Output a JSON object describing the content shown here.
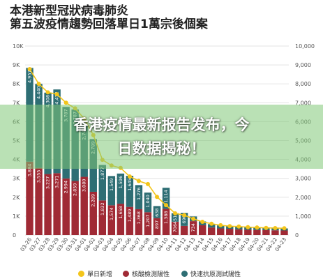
{
  "title_line1": "本港新型冠狀病毒肺炎",
  "title_line2": "第五波疫情趨勢回落單日1萬宗後個案",
  "overlay": {
    "line1": "香港疫情最新报告发布，今",
    "line2": "日数据揭秘！"
  },
  "colors": {
    "daily_total": "#f3c51b",
    "pcr": "#a02a35",
    "rat": "#2e6e74"
  },
  "chart_data": {
    "type": "bar",
    "categories": [
      "03-26",
      "03-27",
      "03-28",
      "03-29",
      "03-30",
      "03-31",
      "04-01",
      "04-02",
      "04-03",
      "04-04",
      "04-05",
      "04-06",
      "04-07",
      "04-08",
      "04-09",
      "04-10",
      "04-11",
      "04-12",
      "04-13",
      "04-14",
      "04-15",
      "04-16",
      "04-17",
      "04-18",
      "04-19",
      "04-20",
      "04-21",
      "04-22",
      "04-23"
    ],
    "tick_labels": [
      "03-26",
      "03-27",
      "03-28",
      "03-29",
      "03-30",
      "03-31",
      "04-01",
      "04-02",
      "04-03",
      "04-04",
      "04-05",
      "04-06",
      "04-07",
      "04-08",
      "04-09",
      "04-10",
      "04-11",
      "04-12",
      "04-13",
      "04-14",
      "04-15",
      "04-16",
      "04-17",
      "04-18",
      "04-19",
      "04-20",
      "04-21",
      "04-22",
      "04-23"
    ],
    "series": [
      {
        "name": "單日新增",
        "type": "line",
        "values": [
          8780,
          8000,
          7550,
          7450,
          7000,
          6700,
          6160,
          5290,
          3980,
          3680,
          3550,
          3100,
          2860,
          2700,
          2020,
          1580,
          1150,
          1050,
          860,
          700,
          600,
          520,
          470,
          450,
          420,
          400,
          380,
          370,
          360
        ]
      },
      {
        "name": "核酸檢測陽性",
        "values": [
          3884,
          3555,
          3227,
          3271,
          2994,
          2859,
          3080,
          2289,
          1832,
          1574,
          1658,
          1489,
          1368,
          1207,
          897,
          1388,
          706,
          485,
          734,
          520,
          400,
          350,
          330,
          300,
          280,
          270,
          260,
          250,
          240
        ]
      },
      {
        "name": "快速抗原測試陽性",
        "values": [
          4957,
          4440,
          4308,
          4432,
          3787,
          3787,
          2743,
          2789,
          1877,
          1549,
          1596,
          1645,
          1276,
          1040,
          638,
          1114,
          451,
          690,
          250,
          200,
          180,
          160,
          140,
          140,
          130,
          120,
          120,
          110,
          110
        ]
      }
    ],
    "pcr_labels": [
      "3,884",
      "3,555",
      "3,227",
      "3,271",
      "2,994",
      "2,859",
      "3,080",
      "2,289",
      "1,832",
      "1,574",
      "1,658",
      "1,489",
      "1,368",
      "1,207",
      "897",
      "1,388",
      "706",
      "",
      "734",
      "",
      "",
      "",
      "",
      "",
      "",
      "",
      "",
      "",
      ""
    ],
    "rat_labels": [
      "4,957",
      "4,440",
      "4,308",
      "4,432",
      "3,787",
      "3,787",
      "2,743",
      "2,789",
      "1,877",
      "1,549",
      "1,596",
      "1,645",
      "1,276",
      "1,040",
      "638",
      "1,114",
      "451",
      "690",
      "",
      "",
      "",
      "",
      "",
      "",
      "",
      "",
      "",
      "",
      ""
    ],
    "left_axis": {
      "ticks": [
        "0",
        "1K",
        "2K",
        "3K",
        "4K",
        "5K",
        "6K",
        "7K",
        "8K",
        "9K",
        "10K"
      ],
      "ylim": [
        0,
        10000
      ]
    },
    "right_axis": {
      "ticks": [
        "0",
        "1,000",
        "2,000",
        "3,000",
        "4,000",
        "5,000",
        "6,000",
        "7,000",
        "8,000",
        "9,000",
        "10,000"
      ],
      "ylim": [
        0,
        10000
      ]
    },
    "grid": true,
    "legend_position": "bottom"
  }
}
